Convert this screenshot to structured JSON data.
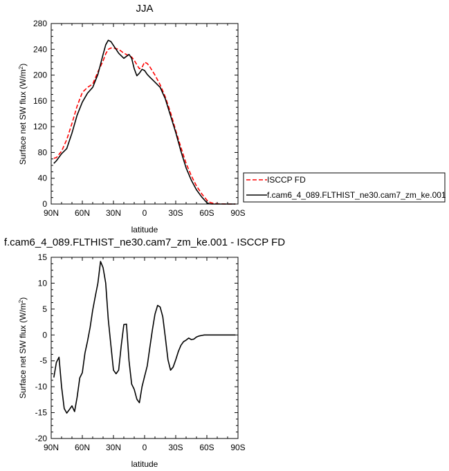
{
  "chart_data": [
    {
      "type": "line",
      "title": "JJA",
      "xlabel": "latitude",
      "ylabel": "Surface net SW flux (W/m",
      "ylabel_sup": "2",
      "ylabel_close": ")",
      "xlim": [
        90,
        -90
      ],
      "ylim": [
        0,
        280
      ],
      "x_ticks": [
        90,
        60,
        30,
        0,
        -30,
        -60,
        -90
      ],
      "x_tick_labels": [
        "90N",
        "60N",
        "30N",
        "0",
        "30S",
        "60S",
        "90S"
      ],
      "y_ticks": [
        0,
        40,
        80,
        120,
        160,
        200,
        240,
        280
      ],
      "y_tick_labels": [
        "0",
        "40",
        "80",
        "120",
        "160",
        "200",
        "240",
        "280"
      ],
      "legend_position": "outside-right",
      "series": [
        {
          "name": "ISCCP FD",
          "color": "#ff0000",
          "style": "dashed",
          "x": [
            87.5,
            85,
            80,
            75,
            70,
            65,
            60,
            55,
            50,
            45,
            40,
            37.5,
            35,
            32.5,
            30,
            27.5,
            25,
            20,
            15,
            12.5,
            10,
            7.5,
            5,
            2.5,
            0,
            -2.5,
            -5,
            -10,
            -15,
            -20,
            -25,
            -30,
            -35,
            -40,
            -45,
            -50,
            -55,
            -60,
            -62.5,
            -65,
            -70,
            -75,
            -80,
            -85,
            -87.5
          ],
          "values": [
            71,
            72,
            82,
            100,
            125,
            152,
            173,
            181,
            186,
            205,
            222,
            233,
            240,
            242,
            242,
            241,
            240,
            234,
            230,
            228,
            223,
            216,
            210,
            212,
            220,
            218,
            213,
            200,
            185,
            166,
            142,
            114,
            88,
            63,
            44,
            28,
            16,
            6,
            3,
            1.5,
            0.5,
            0.2,
            0,
            0,
            0
          ]
        },
        {
          "name": "f.cam6_4_089.FLTHIST_ne30.cam7_zm_ke.001",
          "color": "#000000",
          "style": "solid",
          "x": [
            87.5,
            85,
            80,
            75,
            70,
            65,
            60,
            55,
            50,
            45,
            40,
            37.5,
            35,
            32.5,
            30,
            27.5,
            25,
            20,
            15,
            12.5,
            10,
            7.5,
            5,
            2.5,
            0,
            -2.5,
            -5,
            -10,
            -15,
            -20,
            -25,
            -30,
            -35,
            -40,
            -45,
            -50,
            -55,
            -60,
            -62.5,
            -65,
            -70,
            -75,
            -80,
            -85,
            -87.5
          ],
          "values": [
            63,
            67,
            78,
            86,
            110,
            138,
            158,
            172,
            181,
            201,
            232,
            247,
            254,
            252,
            246,
            240,
            234,
            226,
            232,
            226,
            210,
            199,
            203,
            209,
            207,
            201,
            197,
            189,
            181,
            163,
            137,
            111,
            82,
            56,
            37,
            22,
            11,
            2,
            0.3,
            0,
            0,
            0,
            0,
            0,
            0
          ]
        }
      ]
    },
    {
      "type": "line",
      "title": "f.cam6_4_089.FLTHIST_ne30.cam7_zm_ke.001 - ISCCP FD",
      "xlabel": "latitude",
      "ylabel": "Surface net SW flux (W/m",
      "ylabel_sup": "2",
      "ylabel_close": ")",
      "xlim": [
        90,
        -90
      ],
      "ylim": [
        -20,
        15
      ],
      "x_ticks": [
        90,
        60,
        30,
        0,
        -30,
        -60,
        -90
      ],
      "x_tick_labels": [
        "90N",
        "60N",
        "30N",
        "0",
        "30S",
        "60S",
        "90S"
      ],
      "y_ticks": [
        -20,
        -15,
        -10,
        -5,
        0,
        5,
        10,
        15
      ],
      "y_tick_labels": [
        "-20",
        "-15",
        "-10",
        "-5",
        "0",
        "5",
        "10",
        "15"
      ],
      "series": [
        {
          "color": "#000000",
          "style": "solid",
          "x": [
            87.5,
            85,
            82.5,
            80,
            77.5,
            75,
            72.5,
            70,
            67.5,
            65,
            62.5,
            60,
            57.5,
            55,
            52.5,
            50,
            47.5,
            45,
            42.5,
            40,
            37.5,
            35,
            32.5,
            30,
            27.5,
            25,
            22.5,
            20,
            17.5,
            15,
            12.5,
            10,
            7.5,
            5,
            2.5,
            0,
            -2.5,
            -5,
            -7.5,
            -10,
            -12.5,
            -15,
            -17.5,
            -20,
            -22.5,
            -25,
            -27.5,
            -30,
            -32.5,
            -35,
            -37.5,
            -40,
            -42.5,
            -45,
            -47.5,
            -50,
            -52.5,
            -55,
            -57.5,
            -60,
            -62.5,
            -65,
            -67.5,
            -70,
            -72.5,
            -75,
            -77.5,
            -80,
            -82.5,
            -85,
            -87.5
          ],
          "values": [
            -8.2,
            -5.3,
            -4.3,
            -10,
            -14.2,
            -15.1,
            -14.4,
            -13.7,
            -14.8,
            -12,
            -8.3,
            -7.3,
            -3.5,
            -1.2,
            1.5,
            4.8,
            7.5,
            10,
            14.2,
            13,
            10,
            3,
            -2,
            -6.8,
            -7.5,
            -6.8,
            -2,
            2,
            2.1,
            -5,
            -9.5,
            -10.5,
            -12.4,
            -13.1,
            -10,
            -8,
            -6,
            -2.5,
            1,
            4,
            5.7,
            5.4,
            3.5,
            -0.5,
            -4.8,
            -6.8,
            -6.2,
            -4.8,
            -3.2,
            -2,
            -1.3,
            -1,
            -0.6,
            -0.9,
            -0.8,
            -0.4,
            -0.2,
            -0.1,
            0,
            0,
            0,
            0,
            0,
            0,
            0,
            0,
            0,
            0,
            0,
            0,
            0
          ]
        }
      ]
    }
  ]
}
